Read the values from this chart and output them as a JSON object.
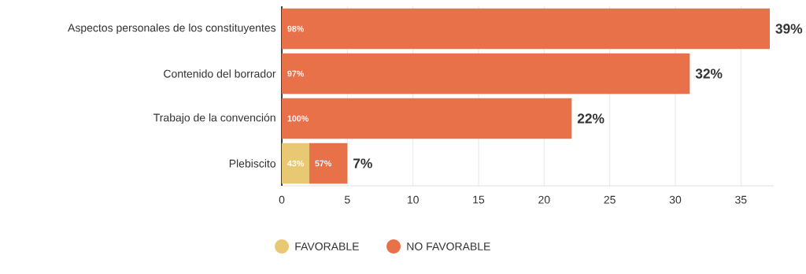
{
  "chart_data": {
    "type": "bar",
    "orientation": "horizontal",
    "stacked": true,
    "categories": [
      "Aspectos personales de los constituyentes",
      "Contenido del borrador",
      "Trabajo de la convención",
      "Plebiscito"
    ],
    "series": [
      {
        "name": "FAVORABLE",
        "color": "#e8c872",
        "values": [
          null,
          null,
          null,
          2.1
        ]
      },
      {
        "name": "NO FAVORABLE",
        "color": "#e8714a",
        "values": [
          37.2,
          31.1,
          22.1,
          2.9
        ]
      }
    ],
    "annotations": [
      {
        "text": "98%",
        "x": 0,
        "y": "Aspectos personales de los constituyentes"
      },
      {
        "text": "97%",
        "x": 0,
        "y": "Contenido del borrador"
      },
      {
        "text": "100%",
        "x": 0,
        "y": "Trabajo de la convención"
      },
      {
        "text": "43%",
        "x": 0,
        "y": "Plebiscito"
      },
      {
        "text": "57%",
        "x": 2.1,
        "y": "Plebiscito"
      },
      {
        "text": "39%",
        "x": 37.2,
        "y": "Aspectos personales de los constituyentes"
      },
      {
        "text": "32%",
        "x": 31.1,
        "y": "Contenido del borrador"
      },
      {
        "text": "22%",
        "x": 22.1,
        "y": "Trabajo de la convención"
      },
      {
        "text": "7%",
        "x": 5,
        "y": "Plebiscito"
      }
    ],
    "xlim": [
      0,
      37.5
    ],
    "xticks": [
      0,
      5,
      10,
      15,
      20,
      25,
      30,
      35
    ],
    "grid": "x",
    "legend": "bottom"
  }
}
